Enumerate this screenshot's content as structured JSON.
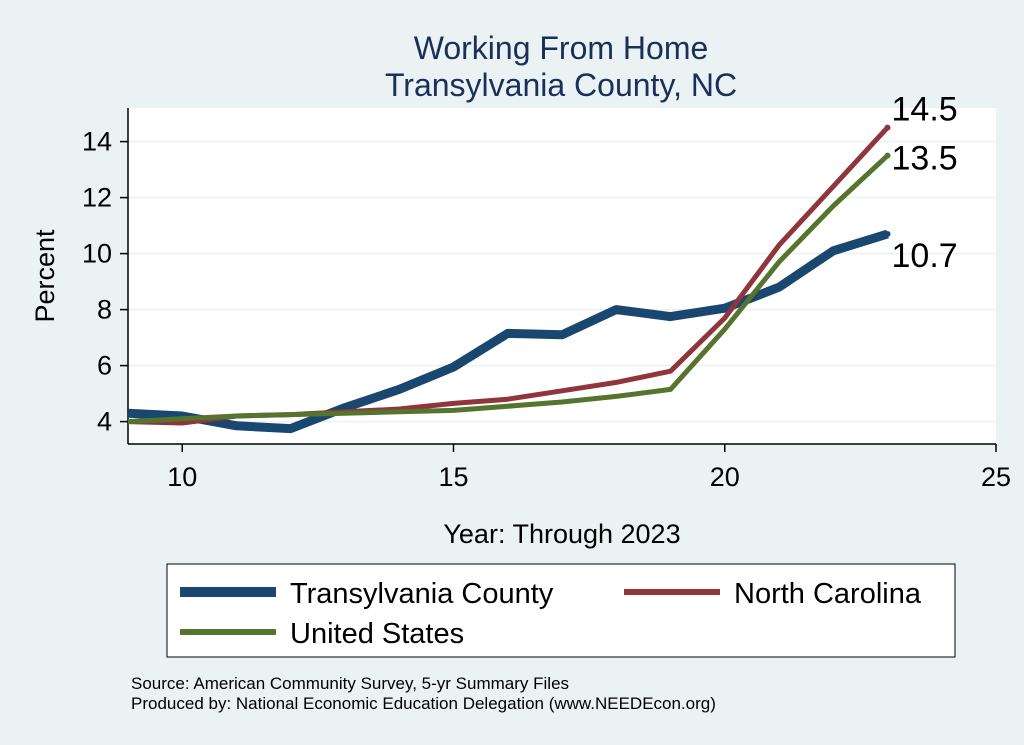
{
  "chart_data": {
    "type": "line",
    "title": [
      "Working From Home",
      "Transylvania County, NC"
    ],
    "xlabel": "Year: Through 2023",
    "ylabel": "Percent",
    "xlim": [
      9,
      25
    ],
    "ylim": [
      3.2,
      15.2
    ],
    "xticks": [
      10,
      15,
      20,
      25
    ],
    "yticks": [
      4,
      6,
      8,
      10,
      12,
      14
    ],
    "grid": "horizontal",
    "series": [
      {
        "name": "Transylvania County",
        "color": "#1a476f",
        "x": [
          9,
          10,
          11,
          12,
          13,
          14,
          15,
          16,
          17,
          18,
          19,
          20,
          21,
          22,
          23
        ],
        "values": [
          4.3,
          4.2,
          3.85,
          3.75,
          4.5,
          5.15,
          5.95,
          7.15,
          7.1,
          8.0,
          7.75,
          8.05,
          8.8,
          10.1,
          10.7
        ],
        "end_label": "10.7"
      },
      {
        "name": "North Carolina",
        "color": "#90353b",
        "x": [
          9,
          10,
          11,
          12,
          13,
          14,
          15,
          16,
          17,
          18,
          19,
          20,
          21,
          22,
          23
        ],
        "values": [
          4.0,
          3.95,
          4.2,
          4.25,
          4.35,
          4.45,
          4.65,
          4.8,
          5.1,
          5.4,
          5.8,
          7.7,
          10.3,
          12.4,
          14.5
        ],
        "end_label": "14.5"
      },
      {
        "name": "United States",
        "color": "#55752f",
        "x": [
          9,
          10,
          11,
          12,
          13,
          14,
          15,
          16,
          17,
          18,
          19,
          20,
          21,
          22,
          23
        ],
        "values": [
          4.0,
          4.1,
          4.2,
          4.25,
          4.3,
          4.35,
          4.4,
          4.55,
          4.7,
          4.9,
          5.15,
          7.3,
          9.7,
          11.7,
          13.5
        ],
        "end_label": "13.5"
      }
    ],
    "legend_position": "bottom"
  },
  "notes": {
    "source": "Source: American Community Survey, 5-yr Summary Files",
    "produced": "Produced by: National Economic Education Delegation (www.NEEDEcon.org)"
  }
}
